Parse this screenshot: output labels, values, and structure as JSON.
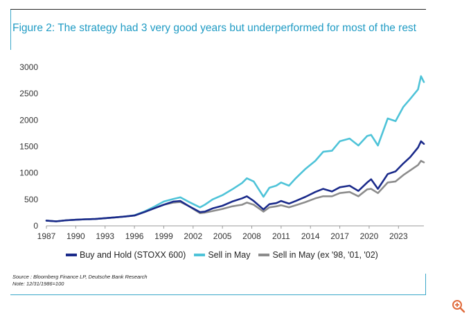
{
  "figure": {
    "title": "Figure 2: The strategy had 3 very good years but underperformed for most of the rest",
    "source": "Source : Bloomberg Finance LP, Deutsche Bank Research",
    "note": "Note: 12/31/1986=100"
  },
  "chart_data": {
    "type": "line",
    "title": "Figure 2: The strategy had 3 very good years but underperformed for most of the rest",
    "xlabel": "",
    "ylabel": "",
    "xlim": [
      1987,
      2025.6
    ],
    "ylim": [
      0,
      3000
    ],
    "x_ticks": [
      "1987",
      "1990",
      "1993",
      "1996",
      "1999",
      "2002",
      "2005",
      "2008",
      "2011",
      "2014",
      "2017",
      "2020",
      "2023"
    ],
    "y_ticks": [
      "0",
      "500",
      "1000",
      "1500",
      "2000",
      "2500",
      "3000"
    ],
    "grid": false,
    "legend_position": "bottom",
    "series": [
      {
        "name": "Buy and Hold (STOXX 600)",
        "color": "#1a2a8a",
        "x": [
          1987,
          1988,
          1989,
          1990,
          1991,
          1992,
          1993,
          1994,
          1995,
          1996,
          1997,
          1998,
          1999,
          2000,
          2000.7,
          2001.5,
          2002.7,
          2003.2,
          2004,
          2005,
          2006,
          2007,
          2007.5,
          2008.2,
          2009.2,
          2009.8,
          2010.5,
          2011,
          2011.8,
          2012.5,
          2013.5,
          2014.5,
          2015.3,
          2016.2,
          2017,
          2018,
          2018.9,
          2019.8,
          2020.2,
          2020.9,
          2021.9,
          2022.7,
          2023.5,
          2024.2,
          2025,
          2025.3,
          2025.6
        ],
        "values": [
          100,
          85,
          105,
          115,
          125,
          130,
          145,
          160,
          175,
          195,
          260,
          330,
          400,
          460,
          470,
          380,
          260,
          270,
          330,
          380,
          460,
          520,
          560,
          470,
          310,
          410,
          430,
          470,
          420,
          470,
          550,
          640,
          700,
          650,
          730,
          760,
          660,
          820,
          880,
          700,
          980,
          1030,
          1180,
          1300,
          1480,
          1600,
          1550
        ]
      },
      {
        "name": "Sell in May",
        "color": "#4ec3d8",
        "x": [
          1987,
          1988,
          1989,
          1990,
          1991,
          1992,
          1993,
          1994,
          1995,
          1996,
          1997,
          1998,
          1999,
          2000,
          2000.7,
          2001.5,
          2002.7,
          2003.2,
          2004,
          2005,
          2006,
          2007,
          2007.5,
          2008.2,
          2009.2,
          2009.8,
          2010.5,
          2011,
          2011.8,
          2012.5,
          2013.5,
          2014.5,
          2015.3,
          2016.2,
          2017,
          2018,
          2018.9,
          2019.8,
          2020.2,
          2020.9,
          2021.9,
          2022.7,
          2023.5,
          2024.2,
          2025,
          2025.3,
          2025.6
        ],
        "values": [
          100,
          85,
          105,
          115,
          125,
          130,
          145,
          160,
          175,
          200,
          270,
          360,
          460,
          510,
          540,
          460,
          350,
          400,
          500,
          580,
          690,
          810,
          900,
          840,
          550,
          720,
          760,
          820,
          760,
          900,
          1080,
          1230,
          1400,
          1420,
          1600,
          1650,
          1520,
          1700,
          1720,
          1520,
          2030,
          1980,
          2250,
          2400,
          2580,
          2830,
          2720
        ]
      },
      {
        "name": "Sell in May (ex '98, '01, '02)",
        "color": "#8c8c8c",
        "x": [
          1987,
          1988,
          1989,
          1990,
          1991,
          1992,
          1993,
          1994,
          1995,
          1996,
          1997,
          1998,
          1999,
          2000,
          2000.7,
          2001.5,
          2002.7,
          2003.2,
          2004,
          2005,
          2006,
          2007,
          2007.5,
          2008.2,
          2009.2,
          2009.8,
          2010.5,
          2011,
          2011.8,
          2012.5,
          2013.5,
          2014.5,
          2015.3,
          2016.2,
          2017,
          2018,
          2018.9,
          2019.8,
          2020.2,
          2020.9,
          2021.9,
          2022.7,
          2023.5,
          2024.2,
          2025,
          2025.3,
          2025.6
        ],
        "values": [
          100,
          85,
          105,
          115,
          125,
          130,
          145,
          160,
          175,
          195,
          260,
          330,
          400,
          440,
          450,
          380,
          240,
          250,
          280,
          320,
          370,
          400,
          440,
          400,
          270,
          350,
          370,
          390,
          350,
          390,
          450,
          520,
          560,
          560,
          620,
          640,
          560,
          690,
          700,
          620,
          820,
          840,
          960,
          1050,
          1150,
          1230,
          1200
        ]
      }
    ]
  }
}
